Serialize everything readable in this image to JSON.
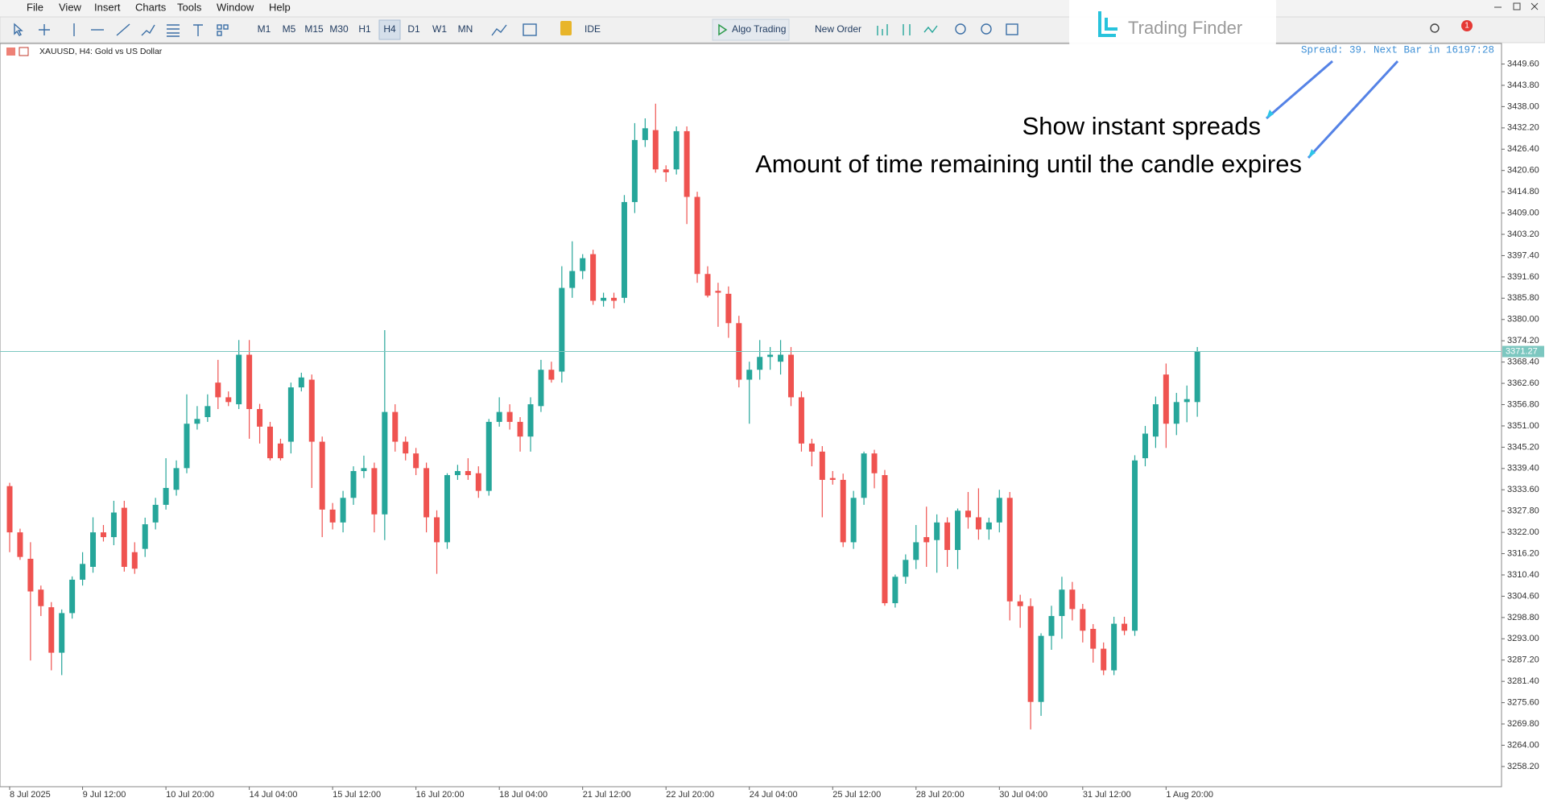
{
  "menu": [
    "File",
    "View",
    "Insert",
    "Charts",
    "Tools",
    "Window",
    "Help"
  ],
  "toolbar": {
    "timeframes": [
      "M1",
      "M5",
      "M15",
      "M30",
      "H1",
      "H4",
      "D1",
      "W1",
      "MN"
    ],
    "active_timeframe": "H4",
    "ide": "IDE",
    "algo_trading": "Algo Trading",
    "new_order": "New Order",
    "notification_count": "1"
  },
  "logo": "Trading Finder",
  "chart_data": {
    "type": "candlestick",
    "title": "XAUUSD, H4: Gold vs US Dollar",
    "info": "Spread: 39. Next Bar in 16197:28",
    "annotations": [
      "Show instant spreads",
      "Amount of time remaining until the candle expires"
    ],
    "up_color": "#26a69a",
    "down_color": "#ef5350",
    "price_line_color": "#7cc7c0",
    "current_price": 3371.27,
    "grid": false,
    "ylim": [
      3252.7,
      3455.2
    ],
    "yticks": [
      {
        "value": 3258.2,
        "label": "3258.20"
      },
      {
        "value": 3264.0,
        "label": "3264.00"
      },
      {
        "value": 3269.8,
        "label": "3269.80"
      },
      {
        "value": 3275.6,
        "label": "3275.60"
      },
      {
        "value": 3281.4,
        "label": "3281.40"
      },
      {
        "value": 3287.2,
        "label": "3287.20"
      },
      {
        "value": 3293.0,
        "label": "3293.00"
      },
      {
        "value": 3298.8,
        "label": "3298.80"
      },
      {
        "value": 3304.6,
        "label": "3304.60"
      },
      {
        "value": 3310.4,
        "label": "3310.40"
      },
      {
        "value": 3316.2,
        "label": "3316.20"
      },
      {
        "value": 3322.0,
        "label": "3322.00"
      },
      {
        "value": 3327.8,
        "label": "3327.80"
      },
      {
        "value": 3333.6,
        "label": "3333.60"
      },
      {
        "value": 3339.4,
        "label": "3339.40"
      },
      {
        "value": 3345.2,
        "label": "3345.20"
      },
      {
        "value": 3351.0,
        "label": "3351.00"
      },
      {
        "value": 3356.8,
        "label": "3356.80"
      },
      {
        "value": 3362.6,
        "label": "3362.60"
      },
      {
        "value": 3368.4,
        "label": "3368.40"
      },
      {
        "value": 3374.2,
        "label": "3374.20"
      },
      {
        "value": 3380.0,
        "label": "3380.00"
      },
      {
        "value": 3385.8,
        "label": "3385.80"
      },
      {
        "value": 3391.6,
        "label": "3391.60"
      },
      {
        "value": 3397.4,
        "label": "3397.40"
      },
      {
        "value": 3403.2,
        "label": "3403.20"
      },
      {
        "value": 3409.0,
        "label": "3409.00"
      },
      {
        "value": 3414.8,
        "label": "3414.80"
      },
      {
        "value": 3420.6,
        "label": "3420.60"
      },
      {
        "value": 3426.4,
        "label": "3426.40"
      },
      {
        "value": 3432.2,
        "label": "3432.20"
      },
      {
        "value": 3438.0,
        "label": "3438.00"
      },
      {
        "value": 3443.8,
        "label": "3443.80"
      },
      {
        "value": 3449.6,
        "label": "3449.60"
      }
    ],
    "categories": [
      "8 Jul 2025",
      null,
      null,
      null,
      null,
      null,
      null,
      "9 Jul 12:00",
      null,
      null,
      null,
      null,
      null,
      null,
      null,
      "10 Jul 20:00",
      null,
      null,
      null,
      null,
      null,
      null,
      null,
      "14 Jul 04:00",
      null,
      null,
      null,
      null,
      null,
      null,
      null,
      "15 Jul 12:00",
      null,
      null,
      null,
      null,
      null,
      null,
      null,
      "16 Jul 20:00",
      null,
      null,
      null,
      null,
      null,
      null,
      null,
      "18 Jul 04:00",
      null,
      null,
      null,
      null,
      null,
      null,
      null,
      "21 Jul 12:00",
      null,
      null,
      null,
      null,
      null,
      null,
      null,
      "22 Jul 20:00",
      null,
      null,
      null,
      null,
      null,
      null,
      null,
      "24 Jul 04:00",
      null,
      null,
      null,
      null,
      null,
      null,
      null,
      "25 Jul 12:00",
      null,
      null,
      null,
      null,
      null,
      null,
      null,
      "28 Jul 20:00",
      null,
      null,
      null,
      null,
      null,
      null,
      null,
      "30 Jul 04:00",
      null,
      null,
      null,
      null,
      null,
      null,
      null,
      "31 Jul 12:00",
      null,
      null,
      null,
      null,
      null,
      null,
      null,
      "1 Aug 20:00",
      null,
      null,
      null
    ],
    "ohlc": [
      [
        3334.6,
        3335.5,
        3316.6,
        3322.0
      ],
      [
        3322.0,
        3323.0,
        3314.5,
        3315.3
      ],
      [
        3314.8,
        3319.3,
        3287.1,
        3305.9
      ],
      [
        3306.4,
        3307.5,
        3299.2,
        3301.9
      ],
      [
        3301.6,
        3303.0,
        3284.4,
        3289.2
      ],
      [
        3289.2,
        3301.0,
        3283.1,
        3300.0
      ],
      [
        3300.0,
        3310.0,
        3298.5,
        3309.1
      ],
      [
        3309.1,
        3316.6,
        3307.5,
        3313.4
      ],
      [
        3312.6,
        3326.1,
        3311.0,
        3322.0
      ],
      [
        3322.0,
        3324.0,
        3319.5,
        3320.7
      ],
      [
        3320.7,
        3330.6,
        3318.5,
        3327.4
      ],
      [
        3328.7,
        3330.6,
        3311.3,
        3312.6
      ],
      [
        3316.6,
        3319.3,
        3310.7,
        3312.1
      ],
      [
        3317.5,
        3326.0,
        3315.3,
        3324.2
      ],
      [
        3324.7,
        3331.4,
        3322.8,
        3329.5
      ],
      [
        3329.5,
        3342.2,
        3328.2,
        3334.1
      ],
      [
        3333.6,
        3341.6,
        3332.0,
        3339.5
      ],
      [
        3339.5,
        3359.6,
        3338.1,
        3351.6
      ],
      [
        3351.6,
        3356.4,
        3350.0,
        3352.9
      ],
      [
        3353.4,
        3359.6,
        3352.1,
        3356.4
      ],
      [
        3362.8,
        3369.0,
        3355.6,
        3358.8
      ],
      [
        3358.8,
        3360.4,
        3356.4,
        3357.5
      ],
      [
        3356.9,
        3374.4,
        3355.6,
        3370.4
      ],
      [
        3370.4,
        3374.4,
        3347.5,
        3355.6
      ],
      [
        3355.6,
        3357.0,
        3346.2,
        3350.8
      ],
      [
        3350.8,
        3352.1,
        3341.6,
        3342.2
      ],
      [
        3346.2,
        3347.5,
        3341.6,
        3342.2
      ],
      [
        3346.7,
        3362.8,
        3343.5,
        3361.5
      ],
      [
        3361.5,
        3365.5,
        3360.4,
        3364.2
      ],
      [
        3363.6,
        3365.0,
        3334.1,
        3346.7
      ],
      [
        3346.7,
        3348.1,
        3320.7,
        3328.2
      ],
      [
        3328.2,
        3330.0,
        3322.8,
        3324.7
      ],
      [
        3324.7,
        3333.3,
        3322.0,
        3331.4
      ],
      [
        3331.4,
        3340.0,
        3329.5,
        3338.7
      ],
      [
        3338.7,
        3342.9,
        3336.8,
        3339.5
      ],
      [
        3339.5,
        3341.0,
        3322.0,
        3326.9
      ],
      [
        3326.9,
        3377.1,
        3319.9,
        3354.8
      ],
      [
        3354.8,
        3356.9,
        3344.0,
        3346.7
      ],
      [
        3346.7,
        3348.1,
        3341.6,
        3343.5
      ],
      [
        3343.5,
        3345.0,
        3337.6,
        3339.5
      ],
      [
        3339.5,
        3341.0,
        3322.0,
        3326.1
      ],
      [
        3326.1,
        3328.0,
        3310.7,
        3319.3
      ],
      [
        3319.3,
        3338.1,
        3317.5,
        3337.6
      ],
      [
        3337.6,
        3340.4,
        3336.3,
        3338.7
      ],
      [
        3338.7,
        3342.2,
        3336.3,
        3337.6
      ],
      [
        3338.1,
        3340.0,
        3331.4,
        3333.3
      ],
      [
        3333.3,
        3352.9,
        3332.0,
        3352.1
      ],
      [
        3352.1,
        3358.8,
        3350.8,
        3354.8
      ],
      [
        3354.8,
        3356.9,
        3350.0,
        3352.1
      ],
      [
        3352.1,
        3353.4,
        3344.0,
        3348.1
      ],
      [
        3348.1,
        3358.8,
        3344.0,
        3356.9
      ],
      [
        3356.4,
        3369.0,
        3354.8,
        3366.3
      ],
      [
        3366.3,
        3368.5,
        3362.8,
        3363.6
      ],
      [
        3365.8,
        3394.5,
        3362.8,
        3388.6
      ],
      [
        3388.6,
        3401.3,
        3385.9,
        3393.2
      ],
      [
        3393.2,
        3397.8,
        3391.0,
        3396.7
      ],
      [
        3397.8,
        3399.0,
        3384.0,
        3385.1
      ],
      [
        3385.1,
        3387.3,
        3383.5,
        3385.9
      ],
      [
        3385.9,
        3387.3,
        3383.0,
        3385.1
      ],
      [
        3385.9,
        3413.9,
        3384.5,
        3412.0
      ],
      [
        3412.0,
        3433.5,
        3409.0,
        3428.9
      ],
      [
        3428.9,
        3434.8,
        3427.0,
        3432.1
      ],
      [
        3431.6,
        3438.8,
        3420.0,
        3420.9
      ],
      [
        3420.9,
        3422.0,
        3417.5,
        3420.1
      ],
      [
        3420.9,
        3432.6,
        3419.5,
        3431.3
      ],
      [
        3431.3,
        3432.6,
        3406.0,
        3413.4
      ],
      [
        3413.4,
        3414.8,
        3390.0,
        3392.4
      ],
      [
        3392.4,
        3394.5,
        3386.0,
        3386.5
      ],
      [
        3387.8,
        3390.0,
        3378.0,
        3387.3
      ],
      [
        3387.0,
        3389.0,
        3375.0,
        3379.0
      ],
      [
        3379.0,
        3381.0,
        3361.5,
        3363.6
      ],
      [
        3363.6,
        3368.5,
        3351.6,
        3366.3
      ],
      [
        3366.3,
        3374.4,
        3363.6,
        3369.8
      ],
      [
        3369.8,
        3372.5,
        3366.3,
        3370.4
      ],
      [
        3368.5,
        3374.4,
        3365.0,
        3370.4
      ],
      [
        3370.4,
        3372.5,
        3356.4,
        3358.8
      ],
      [
        3358.8,
        3360.4,
        3344.0,
        3346.2
      ],
      [
        3346.2,
        3347.5,
        3340.0,
        3344.0
      ],
      [
        3344.0,
        3345.5,
        3326.1,
        3336.3
      ],
      [
        3336.8,
        3338.7,
        3335.0,
        3336.3
      ],
      [
        3336.3,
        3338.0,
        3318.0,
        3319.3
      ],
      [
        3319.3,
        3333.3,
        3317.5,
        3331.4
      ],
      [
        3331.4,
        3344.0,
        3329.5,
        3343.5
      ],
      [
        3343.5,
        3344.5,
        3334.0,
        3338.1
      ],
      [
        3337.6,
        3339.0,
        3302.0,
        3302.7
      ],
      [
        3302.7,
        3310.5,
        3301.5,
        3309.9
      ],
      [
        3309.9,
        3316.0,
        3308.0,
        3314.5
      ],
      [
        3314.5,
        3324.0,
        3312.0,
        3319.3
      ],
      [
        3320.7,
        3329.0,
        3312.6,
        3319.3
      ],
      [
        3319.9,
        3326.9,
        3311.0,
        3324.7
      ],
      [
        3324.7,
        3326.1,
        3312.6,
        3317.2
      ],
      [
        3317.2,
        3328.5,
        3312.0,
        3327.9
      ],
      [
        3327.9,
        3333.0,
        3323.0,
        3326.1
      ],
      [
        3326.1,
        3334.0,
        3320.0,
        3322.8
      ],
      [
        3322.8,
        3326.0,
        3320.0,
        3324.7
      ],
      [
        3324.7,
        3333.6,
        3322.0,
        3331.4
      ],
      [
        3331.4,
        3333.0,
        3298.0,
        3303.2
      ],
      [
        3303.2,
        3305.0,
        3296.0,
        3301.9
      ],
      [
        3301.9,
        3304.0,
        3268.3,
        3275.8
      ],
      [
        3275.8,
        3294.5,
        3272.0,
        3293.8
      ],
      [
        3293.8,
        3302.0,
        3290.0,
        3299.2
      ],
      [
        3299.2,
        3309.9,
        3293.0,
        3306.4
      ],
      [
        3306.4,
        3308.5,
        3298.0,
        3301.1
      ],
      [
        3301.1,
        3302.5,
        3292.0,
        3295.2
      ],
      [
        3295.7,
        3297.0,
        3286.5,
        3290.3
      ],
      [
        3290.3,
        3292.0,
        3283.1,
        3284.4
      ],
      [
        3284.4,
        3299.0,
        3283.1,
        3297.1
      ],
      [
        3297.1,
        3299.0,
        3294.0,
        3295.2
      ],
      [
        3295.2,
        3343.0,
        3293.8,
        3341.6
      ],
      [
        3342.2,
        3351.0,
        3340.0,
        3348.9
      ],
      [
        3348.1,
        3359.0,
        3345.0,
        3356.9
      ],
      [
        3365.0,
        3368.0,
        3345.0,
        3351.6
      ],
      [
        3351.6,
        3360.0,
        3348.5,
        3357.5
      ],
      [
        3357.5,
        3362.0,
        3352.0,
        3358.3
      ],
      [
        3357.5,
        3372.5,
        3353.5,
        3371.27
      ]
    ]
  }
}
